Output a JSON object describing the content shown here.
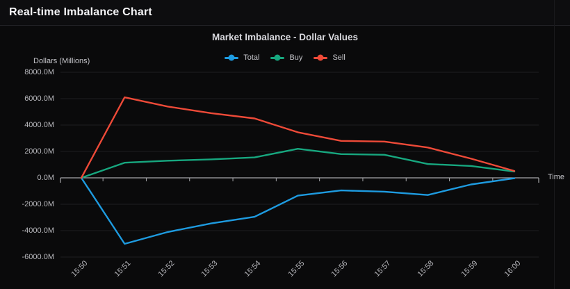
{
  "window": {
    "title": "Real-time Imbalance Chart"
  },
  "chart": {
    "title": "Market Imbalance - Dollar Values",
    "y_axis_title": "Dollars (Millions)",
    "x_axis_title": "Time"
  },
  "chart_data": {
    "type": "line",
    "title": "Market Imbalance - Dollar Values",
    "xlabel": "Time",
    "ylabel": "Dollars (Millions)",
    "x": [
      "15:50",
      "15:51",
      "15:52",
      "15:53",
      "15:54",
      "15:55",
      "15:56",
      "15:57",
      "15:58",
      "15:59",
      "16:00"
    ],
    "series": [
      {
        "name": "Total",
        "color": "#1e9be0",
        "values": [
          0,
          -5000,
          -4100,
          -3450,
          -2950,
          -1350,
          -950,
          -1050,
          -1300,
          -500,
          -30
        ]
      },
      {
        "name": "Buy",
        "color": "#17a77f",
        "values": [
          0,
          1150,
          1300,
          1400,
          1550,
          2200,
          1800,
          1750,
          1050,
          900,
          480
        ]
      },
      {
        "name": "Sell",
        "color": "#ee4a38",
        "values": [
          0,
          6100,
          5400,
          4900,
          4500,
          3450,
          2800,
          2750,
          2300,
          1450,
          520
        ]
      }
    ],
    "ylim": [
      -6000,
      8000
    ],
    "ytick_step": 2000,
    "ytick_labels": [
      "8000.0M",
      "6000.0M",
      "4000.0M",
      "2000.0M",
      "0.0M",
      "-2000.0M",
      "-4000.0M",
      "-6000.0M"
    ],
    "grid": true,
    "legend_position": "top"
  }
}
